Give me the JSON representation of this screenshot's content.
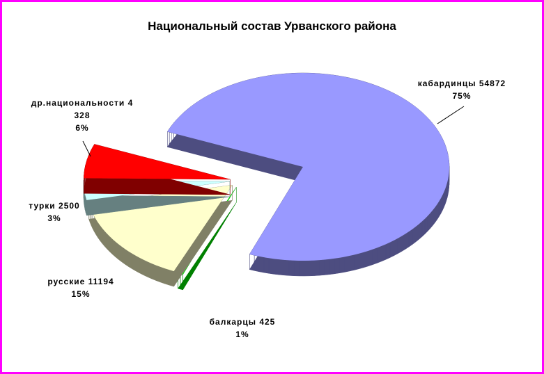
{
  "chart_data": {
    "type": "pie3d",
    "title": "Национальный состав Урванского района",
    "categories": [
      "кабардинцы",
      "балкарцы",
      "русские",
      "турки",
      "др.национальности"
    ],
    "values": [
      54872,
      425,
      11194,
      2500,
      4328
    ],
    "percent_labels": [
      "75%",
      "1%",
      "15%",
      "3%",
      "6%"
    ],
    "colors": [
      "#9999ff",
      "#00ff00",
      "#ffffcc",
      "#ccffff",
      "#ff0000"
    ]
  }
}
